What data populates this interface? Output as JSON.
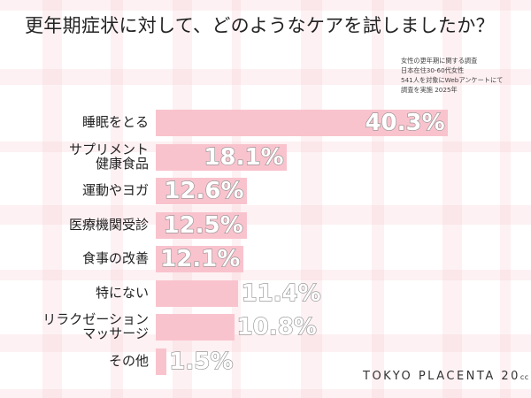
{
  "title": "更年期症状に対して、どのようなケアを試しましたか？",
  "survey_note": [
    "女性の更年期に関する調査",
    "日本在住30-60代女性",
    "541人を対象にWebアンケートにて",
    "調査を実施 2025年"
  ],
  "brand": {
    "name": "TOKYO PLACENTA 20",
    "suffix": "cc"
  },
  "colors": {
    "bar": "#f9c3cd",
    "stripe": "#f4bec8",
    "value_outline": "#8c8c8c"
  },
  "chart_data": {
    "type": "bar",
    "orientation": "horizontal",
    "title": "更年期症状に対して、どのようなケアを試しましたか？",
    "categories": [
      "睡眠をとる",
      "サプリメント 健康食品",
      "運動やヨガ",
      "医療機関受診",
      "食事の改善",
      "特にない",
      "リラクゼーション マッサージ",
      "その他"
    ],
    "category_lines": [
      [
        "睡眠をとる"
      ],
      [
        "サプリメント",
        "健康食品"
      ],
      [
        "運動やヨガ"
      ],
      [
        "医療機関受診"
      ],
      [
        "食事の改善"
      ],
      [
        "特にない"
      ],
      [
        "リラクゼーション",
        "マッサージ"
      ],
      [
        "その他"
      ]
    ],
    "values": [
      40.3,
      18.1,
      12.6,
      12.5,
      12.1,
      11.4,
      10.8,
      1.5
    ],
    "value_labels": [
      "40.3%",
      "18.1%",
      "12.6%",
      "12.5%",
      "12.1%",
      "11.4%",
      "10.8%",
      "1.5%"
    ],
    "xlabel": "",
    "ylabel": "",
    "unit": "%",
    "grid": false,
    "legend": null
  }
}
